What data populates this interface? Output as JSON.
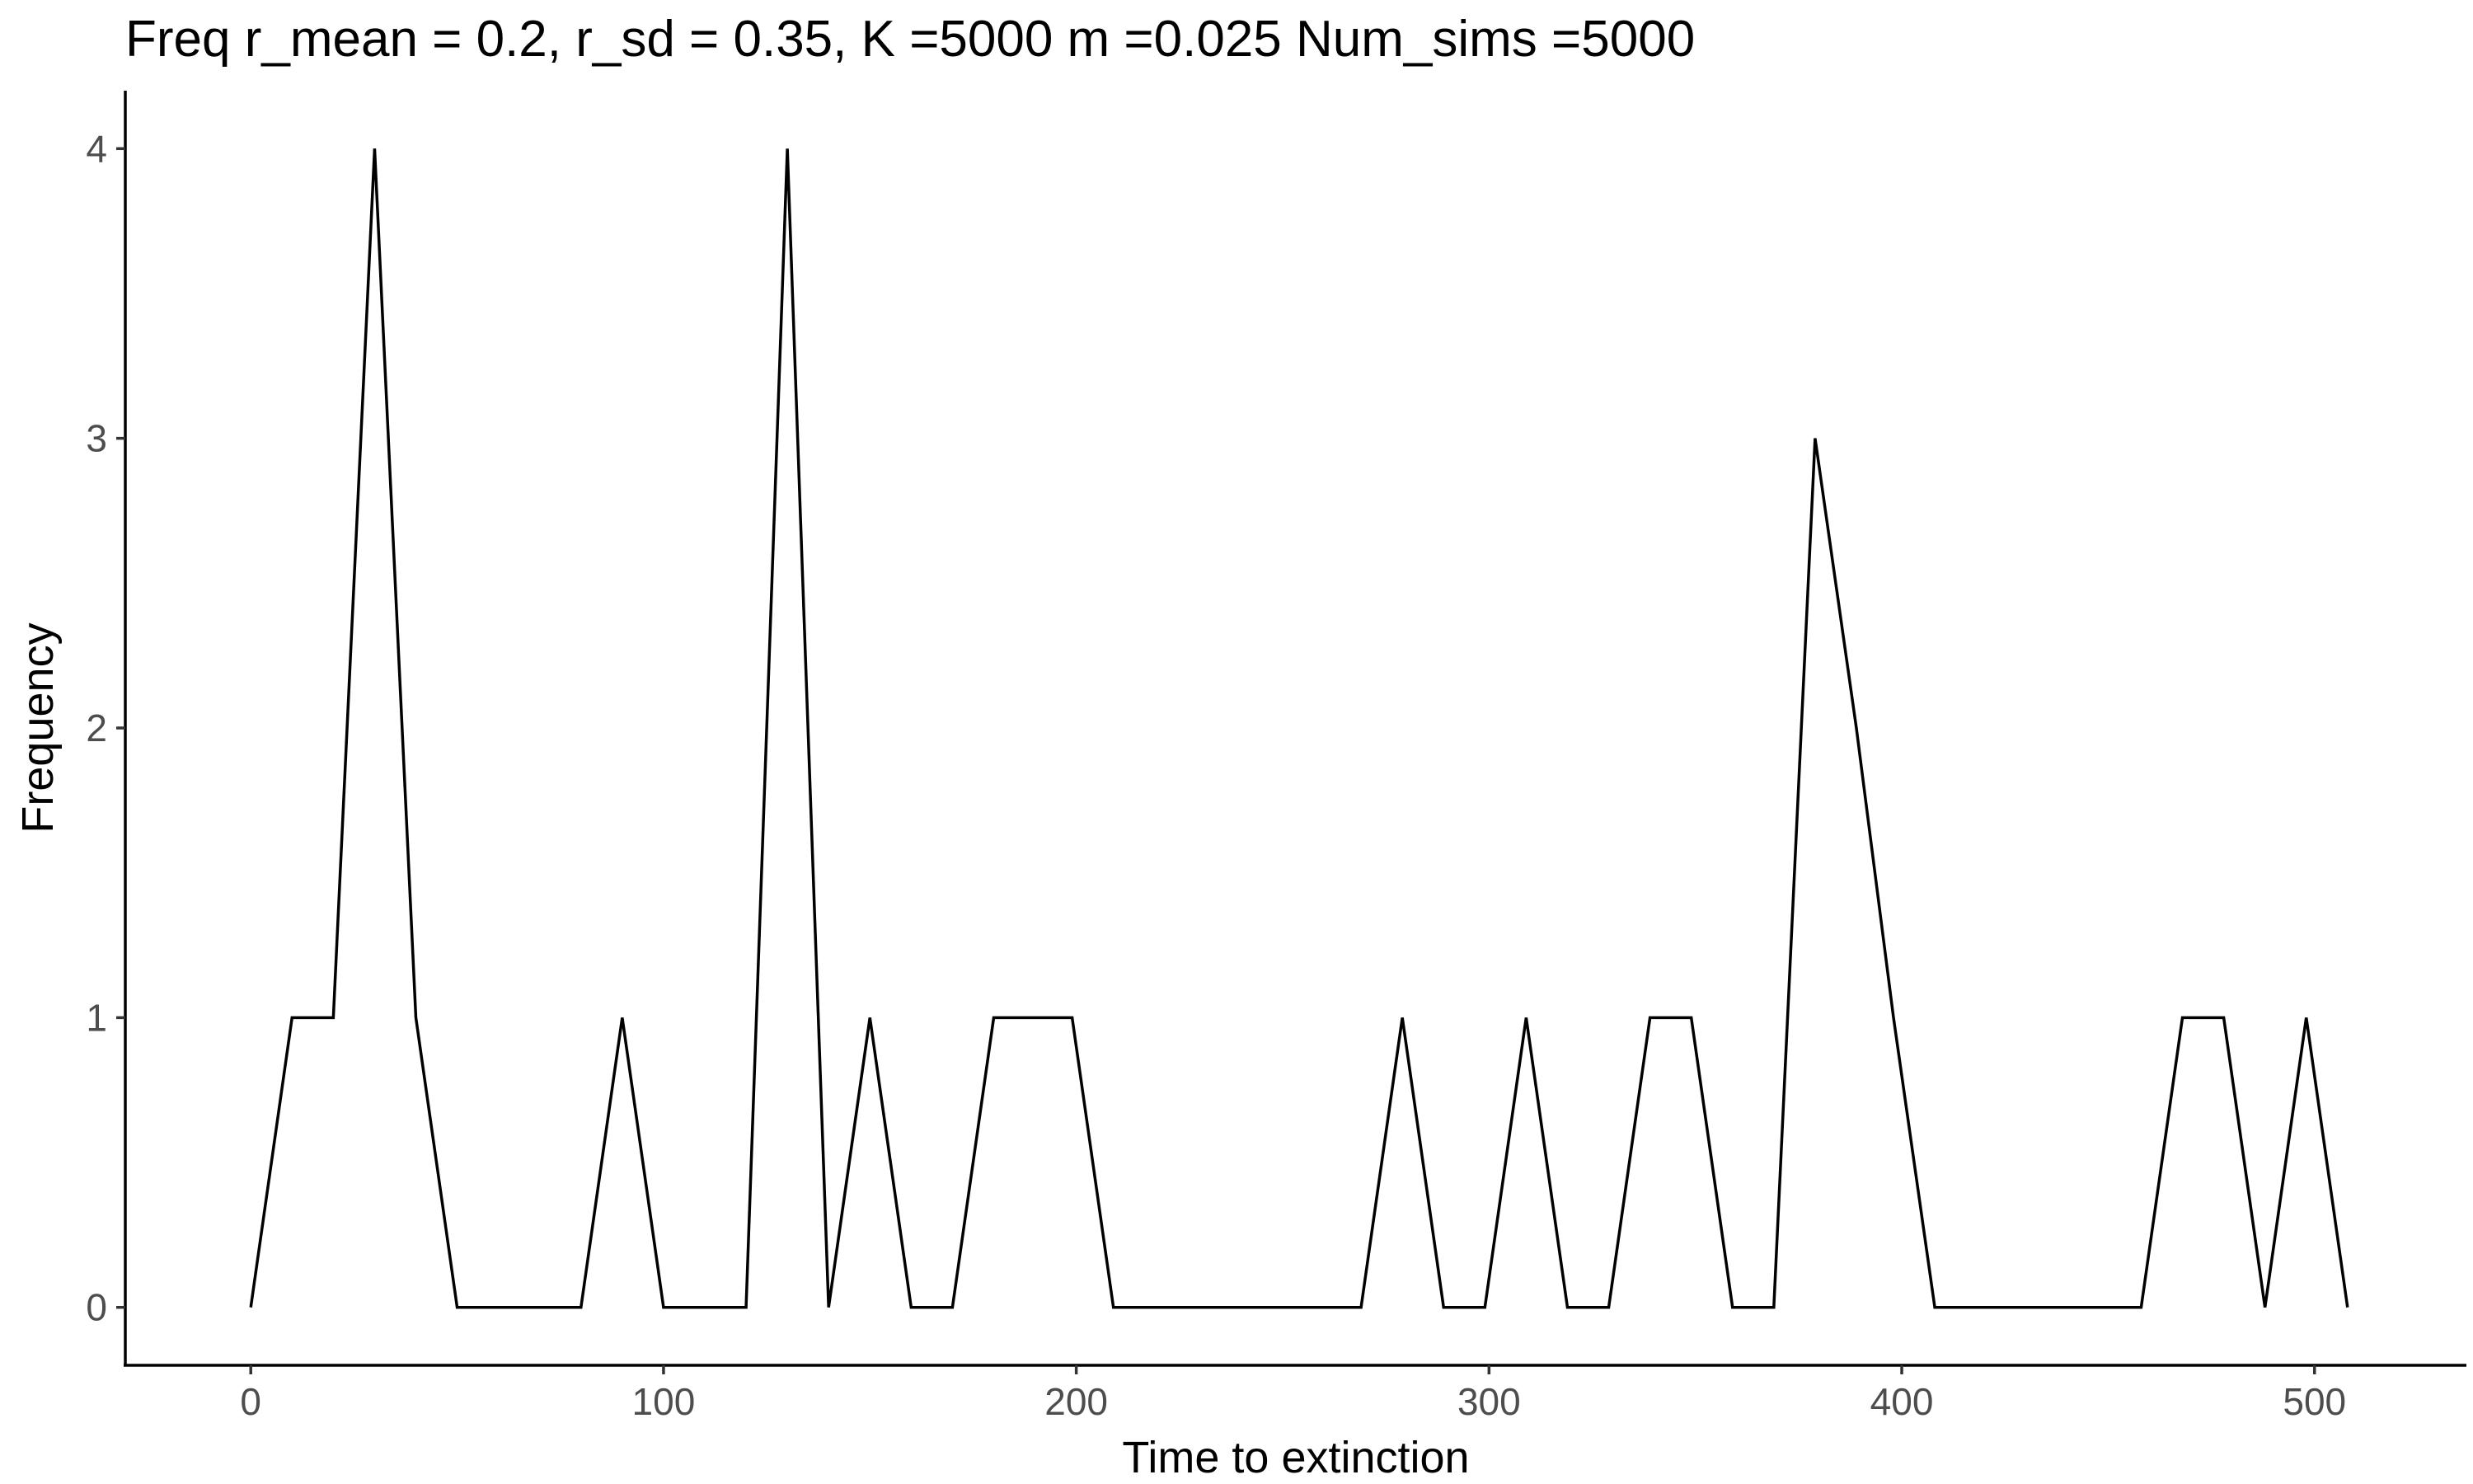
{
  "chart_data": {
    "type": "line",
    "title": "Freq r_mean = 0.2, r_sd = 0.35, K =5000 m =0.025 Num_sims =5000",
    "xlabel": "Time to extinction",
    "ylabel": "Frequency",
    "xlim": [
      -30.4,
      536.8
    ],
    "ylim": [
      -0.2,
      4.2
    ],
    "x_ticks": [
      0,
      100,
      200,
      300,
      400,
      500
    ],
    "y_ticks": [
      0,
      1,
      2,
      3,
      4
    ],
    "grid": false,
    "legend": "none",
    "line_color": "#000000",
    "series": [
      {
        "x": [
          0,
          10,
          20,
          30,
          40,
          50,
          60,
          70,
          80,
          90,
          100,
          110,
          120,
          130,
          140,
          150,
          160,
          170,
          180,
          190,
          199,
          209,
          219,
          229,
          239,
          249,
          259,
          269,
          279,
          289,
          299,
          309,
          319,
          329,
          339,
          349,
          359,
          369,
          379,
          389,
          398,
          408,
          418,
          428,
          438,
          448,
          458,
          468,
          478,
          488,
          498,
          508
        ],
        "values": [
          0,
          1,
          1,
          4,
          1,
          0,
          0,
          0,
          0,
          1,
          0,
          0,
          0,
          4,
          0,
          1,
          0,
          0,
          1,
          1,
          1,
          0,
          0,
          0,
          0,
          0,
          0,
          0,
          1,
          0,
          0,
          1,
          0,
          0,
          1,
          1,
          0,
          0,
          3,
          2,
          1,
          0,
          0,
          0,
          0,
          0,
          0,
          1,
          1,
          0,
          1,
          0
        ]
      }
    ]
  }
}
